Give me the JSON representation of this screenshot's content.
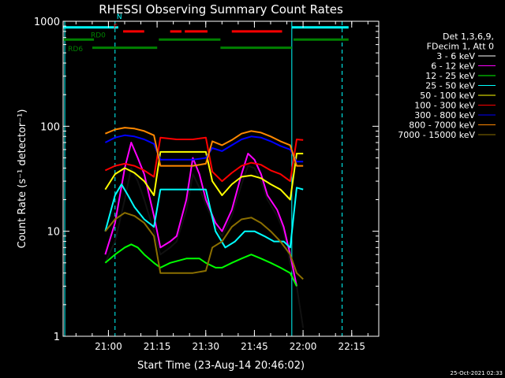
{
  "chart_data": {
    "type": "line",
    "title": "RHESSI Observing Summary Count Rates",
    "xlabel": "Start Time (23-Aug-14 20:46:02)",
    "ylabel": "Count Rate (s⁻¹ detector⁻¹)",
    "yscale": "log",
    "ylim": [
      1,
      1000
    ],
    "xlim_minutes": [
      0,
      97.3
    ],
    "x_ticks": [
      "21:00",
      "21:15",
      "21:30",
      "21:45",
      "22:00",
      "22:15"
    ],
    "x_tick_minutes": [
      13.97,
      28.97,
      43.97,
      58.97,
      73.97,
      88.97
    ],
    "y_ticks": [
      "1",
      "10",
      "100",
      "1000"
    ],
    "y_tick_values": [
      1,
      10,
      100,
      1000
    ],
    "legend_header": [
      "Det 1,3,6,9,",
      "FDecim 1, Att 0"
    ],
    "legend_position": "right",
    "footer_timestamp": "25-Oct-2021 02:33",
    "vertical_markers": [
      {
        "minute": 16.0,
        "color": "#00ffff",
        "style": "dashed"
      },
      {
        "minute": 70.5,
        "color": "#00ffff",
        "style": "solid"
      },
      {
        "minute": 86.0,
        "color": "#00ffff",
        "style": "dashed"
      },
      {
        "minute": 0.5,
        "color": "#00ffff",
        "style": "solid"
      }
    ],
    "flag_bars": [
      {
        "label": "N",
        "color": "#00ffff",
        "y": 875,
        "segments": [
          [
            0,
            17
          ],
          [
            70.5,
            88
          ]
        ]
      },
      {
        "label": "F",
        "color": "#ff0000",
        "y": 800,
        "segments": [
          [
            18.5,
            25
          ],
          [
            33,
            36.5
          ],
          [
            37.5,
            44.5
          ],
          [
            52,
            67.5
          ]
        ]
      },
      {
        "label": "RD0",
        "color": "#008000",
        "y": 670,
        "segments": [
          [
            0,
            9.5
          ],
          [
            29.5,
            48.5
          ],
          [
            71,
            88
          ]
        ]
      },
      {
        "label": "RD6",
        "color": "#008000",
        "y": 560,
        "segments": [
          [
            9,
            29
          ],
          [
            48.5,
            70.5
          ]
        ]
      }
    ],
    "series": [
      {
        "name": "3 - 6 keV",
        "color": "#000000",
        "points": [
          [
            13,
            5
          ],
          [
            16,
            8
          ],
          [
            19,
            20
          ],
          [
            21,
            40
          ],
          [
            23,
            30
          ],
          [
            25,
            20
          ],
          [
            28,
            10
          ],
          [
            30,
            6
          ],
          [
            33,
            7
          ],
          [
            35,
            8
          ],
          [
            38,
            16
          ],
          [
            40,
            35
          ],
          [
            42,
            26
          ],
          [
            44,
            18
          ],
          [
            47,
            11
          ],
          [
            49,
            9
          ],
          [
            52,
            14
          ],
          [
            55,
            28
          ],
          [
            57,
            42
          ],
          [
            59,
            40
          ],
          [
            61,
            30
          ],
          [
            63,
            20
          ],
          [
            66,
            14
          ],
          [
            68,
            10
          ],
          [
            70,
            5
          ],
          [
            72,
            3
          ],
          [
            74,
            1.2
          ]
        ]
      },
      {
        "name": "6 - 12 keV",
        "color": "#ff00ff",
        "points": [
          [
            13,
            6
          ],
          [
            16,
            12
          ],
          [
            19,
            40
          ],
          [
            21,
            70
          ],
          [
            23,
            50
          ],
          [
            25,
            35
          ],
          [
            28,
            14
          ],
          [
            30,
            7
          ],
          [
            33,
            8
          ],
          [
            35,
            9
          ],
          [
            38,
            20
          ],
          [
            40,
            50
          ],
          [
            42,
            35
          ],
          [
            44,
            20
          ],
          [
            47,
            12
          ],
          [
            49,
            10
          ],
          [
            52,
            16
          ],
          [
            55,
            35
          ],
          [
            57,
            55
          ],
          [
            59,
            48
          ],
          [
            61,
            35
          ],
          [
            63,
            22
          ],
          [
            66,
            16
          ],
          [
            68,
            11
          ],
          [
            70,
            6
          ],
          [
            72,
            3
          ]
        ]
      },
      {
        "name": "12 - 25 keV",
        "color": "#00ff00",
        "points": [
          [
            13,
            5
          ],
          [
            16,
            6
          ],
          [
            19,
            7
          ],
          [
            21,
            7.5
          ],
          [
            23,
            7
          ],
          [
            25,
            6
          ],
          [
            28,
            5
          ],
          [
            30,
            4.5
          ],
          [
            33,
            5
          ],
          [
            38,
            5.5
          ],
          [
            42,
            5.5
          ],
          [
            44,
            5
          ],
          [
            47,
            4.5
          ],
          [
            49,
            4.5
          ],
          [
            52,
            5
          ],
          [
            55,
            5.5
          ],
          [
            58,
            6
          ],
          [
            61,
            5.5
          ],
          [
            64,
            5
          ],
          [
            67,
            4.5
          ],
          [
            70,
            4
          ],
          [
            72,
            3
          ]
        ]
      },
      {
        "name": "25 - 50 keV",
        "color": "#00ffff",
        "points": [
          [
            13,
            10
          ],
          [
            16,
            22
          ],
          [
            18,
            28
          ],
          [
            20,
            22
          ],
          [
            22,
            17
          ],
          [
            25,
            13
          ],
          [
            28,
            11
          ],
          [
            30,
            25
          ],
          [
            35,
            25
          ],
          [
            40,
            25
          ],
          [
            44,
            25
          ],
          [
            47,
            10
          ],
          [
            50,
            7
          ],
          [
            53,
            8
          ],
          [
            56,
            10
          ],
          [
            59,
            10
          ],
          [
            62,
            9
          ],
          [
            65,
            8
          ],
          [
            68,
            8
          ],
          [
            70,
            7
          ],
          [
            72,
            26
          ],
          [
            74,
            25
          ]
        ]
      },
      {
        "name": "50 - 100 keV",
        "color": "#ffff00",
        "points": [
          [
            13,
            25
          ],
          [
            16,
            35
          ],
          [
            19,
            40
          ],
          [
            22,
            36
          ],
          [
            25,
            30
          ],
          [
            28,
            22
          ],
          [
            30,
            57
          ],
          [
            35,
            57
          ],
          [
            40,
            57
          ],
          [
            44,
            57
          ],
          [
            46,
            30
          ],
          [
            49,
            22
          ],
          [
            52,
            28
          ],
          [
            55,
            33
          ],
          [
            58,
            34
          ],
          [
            61,
            32
          ],
          [
            64,
            28
          ],
          [
            67,
            25
          ],
          [
            70,
            20
          ],
          [
            72,
            55
          ],
          [
            74,
            55
          ]
        ]
      },
      {
        "name": "100 - 300 keV",
        "color": "#ff0000",
        "points": [
          [
            13,
            38
          ],
          [
            16,
            42
          ],
          [
            19,
            44
          ],
          [
            22,
            42
          ],
          [
            25,
            38
          ],
          [
            28,
            33
          ],
          [
            30,
            78
          ],
          [
            35,
            75
          ],
          [
            40,
            75
          ],
          [
            44,
            78
          ],
          [
            46,
            37
          ],
          [
            49,
            30
          ],
          [
            52,
            36
          ],
          [
            55,
            42
          ],
          [
            58,
            45
          ],
          [
            61,
            43
          ],
          [
            64,
            38
          ],
          [
            67,
            35
          ],
          [
            70,
            30
          ],
          [
            72,
            75
          ],
          [
            74,
            74
          ]
        ]
      },
      {
        "name": "300 - 800 keV",
        "color": "#0000ff",
        "points": [
          [
            13,
            70
          ],
          [
            16,
            78
          ],
          [
            19,
            82
          ],
          [
            22,
            80
          ],
          [
            25,
            75
          ],
          [
            28,
            68
          ],
          [
            30,
            48
          ],
          [
            35,
            48
          ],
          [
            40,
            48
          ],
          [
            44,
            50
          ],
          [
            46,
            62
          ],
          [
            49,
            58
          ],
          [
            52,
            66
          ],
          [
            55,
            75
          ],
          [
            58,
            80
          ],
          [
            61,
            78
          ],
          [
            64,
            72
          ],
          [
            67,
            65
          ],
          [
            70,
            60
          ],
          [
            72,
            46
          ],
          [
            74,
            46
          ]
        ]
      },
      {
        "name": "800 - 7000 keV",
        "color": "#ff8800",
        "points": [
          [
            13,
            85
          ],
          [
            16,
            93
          ],
          [
            19,
            97
          ],
          [
            22,
            95
          ],
          [
            25,
            90
          ],
          [
            28,
            82
          ],
          [
            30,
            42
          ],
          [
            35,
            42
          ],
          [
            40,
            42
          ],
          [
            44,
            44
          ],
          [
            46,
            72
          ],
          [
            49,
            66
          ],
          [
            52,
            74
          ],
          [
            55,
            85
          ],
          [
            58,
            90
          ],
          [
            61,
            87
          ],
          [
            64,
            80
          ],
          [
            67,
            72
          ],
          [
            70,
            66
          ],
          [
            72,
            42
          ],
          [
            74,
            42
          ]
        ]
      },
      {
        "name": "7000 - 15000 keV",
        "color": "#8b6f00",
        "points": [
          [
            13,
            10
          ],
          [
            16,
            13
          ],
          [
            19,
            15
          ],
          [
            22,
            14
          ],
          [
            25,
            12
          ],
          [
            28,
            9
          ],
          [
            30,
            4
          ],
          [
            35,
            4
          ],
          [
            40,
            4
          ],
          [
            44,
            4.2
          ],
          [
            46,
            7
          ],
          [
            49,
            8
          ],
          [
            52,
            11
          ],
          [
            55,
            13
          ],
          [
            58,
            13.5
          ],
          [
            61,
            12
          ],
          [
            64,
            10
          ],
          [
            67,
            8
          ],
          [
            70,
            6
          ],
          [
            72,
            4
          ],
          [
            74,
            3.5
          ]
        ]
      }
    ]
  }
}
